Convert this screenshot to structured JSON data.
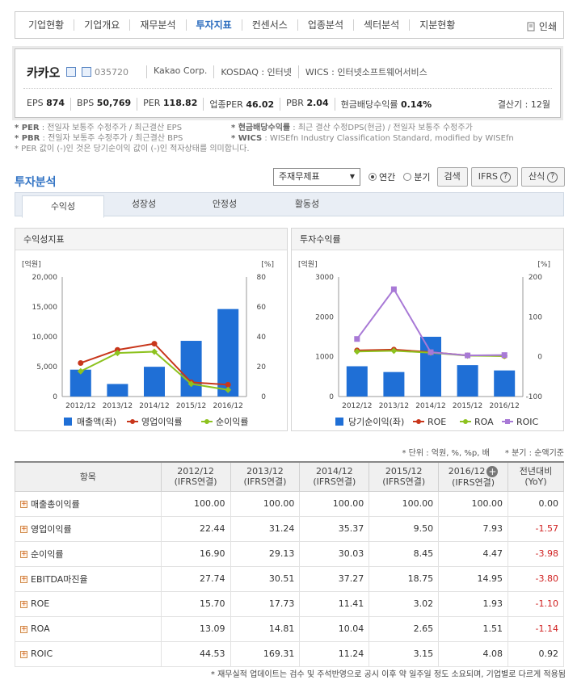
{
  "topnav": {
    "tabs": [
      "기업현황",
      "기업개요",
      "재무분석",
      "투자지표",
      "컨센서스",
      "업종분석",
      "섹터분석",
      "지분현황"
    ],
    "active": "투자지표",
    "print": "인쇄"
  },
  "company": {
    "name": "카카오",
    "code": "035720",
    "eng": "Kakao Corp.",
    "market": "KOSDAQ : 인터넷",
    "wics": "WICS : 인터넷소프트웨어서비스",
    "metrics": {
      "eps_label": "EPS",
      "eps": "874",
      "bps_label": "BPS",
      "bps": "50,769",
      "per_label": "PER",
      "per": "118.82",
      "sector_per_label": "업종PER",
      "sector_per": "46.02",
      "pbr_label": "PBR",
      "pbr": "2.04",
      "div_label": "현금배당수익률",
      "div": "0.14%"
    },
    "settle": "결산기 : 12월"
  },
  "notes": {
    "per_k": "* PER",
    "per_v": " : 전일자 보통주 수정주가 / 최근결산 EPS",
    "div_k": "* 현금배당수익률",
    "div_v": " : 최근 결산 수정DPS(현금) / 전일자 보통주 수정주가",
    "pbr_k": "* PBR",
    "pbr_v": " : 전일자 보통주 수정주가 / 최근결산 BPS",
    "wics_k": "* WICS",
    "wics_v": " : WISEfn Industry Classification Standard, modified by WISEfn",
    "neg": "* PER 값이 (-)인 것은 당기순이익 값이 (-)인 적자상태를 의미합니다."
  },
  "analysis": {
    "title": "투자분석",
    "select": "주재무제표",
    "radio_annual": "연간",
    "radio_quarter": "분기",
    "search": "검색",
    "ifrs": "IFRS",
    "formula": "산식"
  },
  "subtabs": [
    "수익성",
    "성장성",
    "안정성",
    "활동성"
  ],
  "panels": {
    "left_title": "수익성지표",
    "right_title": "투자수익률"
  },
  "chart_data": [
    {
      "type": "bar",
      "title": "수익성지표",
      "categories": [
        "2012/12",
        "2013/12",
        "2014/12",
        "2015/12",
        "2016/12"
      ],
      "y_left_label": "[억원]",
      "y_right_label": "[%]",
      "y_left_ticks": [
        "20,000",
        "15,000",
        "10,000",
        "5,000",
        "0"
      ],
      "y_right_ticks": [
        "80",
        "60",
        "40",
        "20",
        "0"
      ],
      "ylim_left": [
        0,
        20000
      ],
      "ylim_right": [
        0,
        80
      ],
      "series": [
        {
          "name": "매출액(좌)",
          "type": "bar",
          "axis": "left",
          "color": "#1f6fd6",
          "values": [
            4500,
            2100,
            4980,
            9320,
            14640
          ]
        },
        {
          "name": "영업이익률",
          "type": "line",
          "axis": "right",
          "color": "#c8361b",
          "values": [
            22.44,
            31.24,
            35.37,
            9.5,
            7.93
          ]
        },
        {
          "name": "순이익률",
          "type": "line",
          "axis": "right",
          "color": "#8dc21f",
          "values": [
            16.9,
            29.13,
            30.03,
            8.45,
            4.47
          ]
        }
      ]
    },
    {
      "type": "bar",
      "title": "투자수익률",
      "categories": [
        "2012/12",
        "2013/12",
        "2014/12",
        "2015/12",
        "2016/12"
      ],
      "y_left_label": "[억원]",
      "y_right_label": "[%]",
      "y_left_ticks": [
        "3000",
        "2000",
        "1000",
        "0"
      ],
      "y_right_ticks": [
        "200",
        "100",
        "0",
        "-100"
      ],
      "ylim_left": [
        0,
        3000
      ],
      "ylim_right": [
        -100,
        200
      ],
      "series": [
        {
          "name": "당기순이익(좌)",
          "type": "bar",
          "axis": "left",
          "color": "#1f6fd6",
          "values": [
            760,
            615,
            1500,
            788,
            655
          ]
        },
        {
          "name": "ROE",
          "type": "line",
          "axis": "right",
          "color": "#c8361b",
          "values": [
            15.7,
            17.73,
            11.41,
            3.02,
            1.93
          ]
        },
        {
          "name": "ROA",
          "type": "line",
          "axis": "right",
          "color": "#8dc21f",
          "values": [
            13.09,
            14.81,
            10.04,
            2.65,
            1.51
          ]
        },
        {
          "name": "ROIC",
          "type": "line",
          "axis": "right",
          "color": "#a879d6",
          "values": [
            44.53,
            169.31,
            11.24,
            3.15,
            4.08
          ]
        }
      ]
    }
  ],
  "unit_note": "* 단위 : 억원, %, %p, 배      * 분기 : 순액기준",
  "table": {
    "header_item": "항목",
    "columns": [
      {
        "year": "2012/12",
        "basis": "(IFRS연결)"
      },
      {
        "year": "2013/12",
        "basis": "(IFRS연결)"
      },
      {
        "year": "2014/12",
        "basis": "(IFRS연결)"
      },
      {
        "year": "2015/12",
        "basis": "(IFRS연결)"
      },
      {
        "year": "2016/12",
        "basis": "(IFRS연결)"
      }
    ],
    "yoy_1": "전년대비",
    "yoy_2": "(YoY)",
    "rows": [
      {
        "label": "매출총이익률",
        "v": [
          "100.00",
          "100.00",
          "100.00",
          "100.00",
          "100.00"
        ],
        "yoy": "0.00"
      },
      {
        "label": "영업이익률",
        "v": [
          "22.44",
          "31.24",
          "35.37",
          "9.50",
          "7.93"
        ],
        "yoy": "-1.57"
      },
      {
        "label": "순이익률",
        "v": [
          "16.90",
          "29.13",
          "30.03",
          "8.45",
          "4.47"
        ],
        "yoy": "-3.98"
      },
      {
        "label": "EBITDA마진율",
        "v": [
          "27.74",
          "30.51",
          "37.27",
          "18.75",
          "14.95"
        ],
        "yoy": "-3.80"
      },
      {
        "label": "ROE",
        "v": [
          "15.70",
          "17.73",
          "11.41",
          "3.02",
          "1.93"
        ],
        "yoy": "-1.10"
      },
      {
        "label": "ROA",
        "v": [
          "13.09",
          "14.81",
          "10.04",
          "2.65",
          "1.51"
        ],
        "yoy": "-1.14"
      },
      {
        "label": "ROIC",
        "v": [
          "44.53",
          "169.31",
          "11.24",
          "3.15",
          "4.08"
        ],
        "yoy": "0.92"
      }
    ]
  },
  "footer": "* 재무실적 업데이트는 검수 및 주석반영으로 공시 이후 약 일주일 정도 소요되며, 기업별로 다르게 적용됨"
}
